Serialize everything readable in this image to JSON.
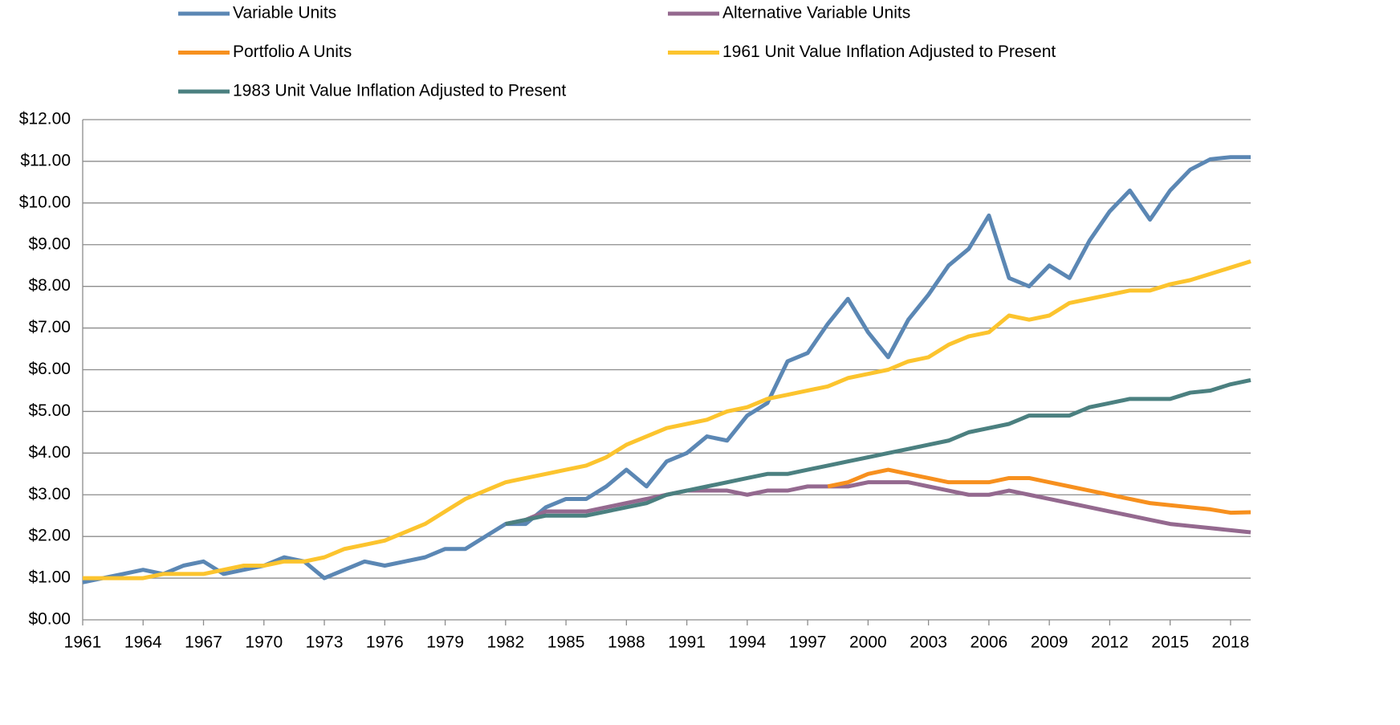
{
  "chart_data": {
    "type": "line",
    "x": [
      1961,
      1962,
      1963,
      1964,
      1965,
      1966,
      1967,
      1968,
      1969,
      1970,
      1971,
      1972,
      1973,
      1974,
      1975,
      1976,
      1977,
      1978,
      1979,
      1980,
      1981,
      1982,
      1983,
      1984,
      1985,
      1986,
      1987,
      1988,
      1989,
      1990,
      1991,
      1992,
      1993,
      1994,
      1995,
      1996,
      1997,
      1998,
      1999,
      2000,
      2001,
      2002,
      2003,
      2004,
      2005,
      2006,
      2007,
      2008,
      2009,
      2010,
      2011,
      2012,
      2013,
      2014,
      2015,
      2016,
      2017,
      2018,
      2019
    ],
    "xlim": [
      1961,
      2019
    ],
    "xticks": [
      1961,
      1964,
      1967,
      1970,
      1973,
      1976,
      1979,
      1982,
      1985,
      1988,
      1991,
      1994,
      1997,
      2000,
      2003,
      2006,
      2009,
      2012,
      2015,
      2018
    ],
    "ylim": [
      0,
      12
    ],
    "yticks": [
      {
        "value": 0,
        "label": "$0.00"
      },
      {
        "value": 1,
        "label": "$1.00"
      },
      {
        "value": 2,
        "label": "$2.00"
      },
      {
        "value": 3,
        "label": "$3.00"
      },
      {
        "value": 4,
        "label": "$4.00"
      },
      {
        "value": 5,
        "label": "$5.00"
      },
      {
        "value": 6,
        "label": "$6.00"
      },
      {
        "value": 7,
        "label": "$7.00"
      },
      {
        "value": 8,
        "label": "$8.00"
      },
      {
        "value": 9,
        "label": "$9.00"
      },
      {
        "value": 10,
        "label": "$10.00"
      },
      {
        "value": 11,
        "label": "$11.00"
      },
      {
        "value": 12,
        "label": "$12.00"
      }
    ],
    "grid": true,
    "legend": "top",
    "series": [
      {
        "name": "Variable Units",
        "color": "#5b87b4",
        "values": [
          0.9,
          1.0,
          1.1,
          1.2,
          1.1,
          1.3,
          1.4,
          1.1,
          1.2,
          1.3,
          1.5,
          1.4,
          1.0,
          1.2,
          1.4,
          1.3,
          1.4,
          1.5,
          1.7,
          1.7,
          2.0,
          2.3,
          2.3,
          2.7,
          2.9,
          2.9,
          3.2,
          3.6,
          3.2,
          3.8,
          4.0,
          4.4,
          4.3,
          4.9,
          5.2,
          6.2,
          6.4,
          7.1,
          7.7,
          6.9,
          6.3,
          7.2,
          7.8,
          8.5,
          8.9,
          9.7,
          8.2,
          8.0,
          8.5,
          8.2,
          9.1,
          9.8,
          10.3,
          9.6,
          10.3,
          10.8,
          11.05,
          11.1,
          11.1
        ]
      },
      {
        "name": "Alternative Variable Units",
        "color": "#94698f",
        "values": [
          null,
          null,
          null,
          null,
          null,
          null,
          null,
          null,
          null,
          null,
          null,
          null,
          null,
          null,
          null,
          null,
          null,
          null,
          null,
          null,
          null,
          2.3,
          2.4,
          2.6,
          2.6,
          2.6,
          2.7,
          2.8,
          2.9,
          3.0,
          3.1,
          3.1,
          3.1,
          3.0,
          3.1,
          3.1,
          3.2,
          3.2,
          3.2,
          3.3,
          3.3,
          3.3,
          3.2,
          3.1,
          3.0,
          3.0,
          3.1,
          3.0,
          2.9,
          2.8,
          2.7,
          2.6,
          2.5,
          2.4,
          2.3,
          2.25,
          2.2,
          2.15,
          2.1
        ]
      },
      {
        "name": "Portfolio A Units",
        "color": "#f7901e",
        "values": [
          null,
          null,
          null,
          null,
          null,
          null,
          null,
          null,
          null,
          null,
          null,
          null,
          null,
          null,
          null,
          null,
          null,
          null,
          null,
          null,
          null,
          null,
          null,
          null,
          null,
          null,
          null,
          null,
          null,
          null,
          null,
          null,
          null,
          null,
          null,
          null,
          null,
          3.2,
          3.3,
          3.5,
          3.6,
          3.5,
          3.4,
          3.3,
          3.3,
          3.3,
          3.4,
          3.4,
          3.3,
          3.2,
          3.1,
          3.0,
          2.9,
          2.8,
          2.75,
          2.7,
          2.65,
          2.57,
          2.58
        ]
      },
      {
        "name": "1961 Unit Value Inflation Adjusted to Present",
        "color": "#fcc42e",
        "values": [
          1.0,
          1.0,
          1.0,
          1.0,
          1.1,
          1.1,
          1.1,
          1.2,
          1.3,
          1.3,
          1.4,
          1.4,
          1.5,
          1.7,
          1.8,
          1.9,
          2.1,
          2.3,
          2.6,
          2.9,
          3.1,
          3.3,
          3.4,
          3.5,
          3.6,
          3.7,
          3.9,
          4.2,
          4.4,
          4.6,
          4.7,
          4.8,
          5.0,
          5.1,
          5.3,
          5.4,
          5.5,
          5.6,
          5.8,
          5.9,
          6.0,
          6.2,
          6.3,
          6.6,
          6.8,
          6.9,
          7.3,
          7.2,
          7.3,
          7.6,
          7.7,
          7.8,
          7.9,
          7.9,
          8.05,
          8.15,
          8.3,
          8.45,
          8.6
        ]
      },
      {
        "name": "1983 Unit Value Inflation Adjusted to Present",
        "color": "#4b8080",
        "values": [
          null,
          null,
          null,
          null,
          null,
          null,
          null,
          null,
          null,
          null,
          null,
          null,
          null,
          null,
          null,
          null,
          null,
          null,
          null,
          null,
          null,
          2.3,
          2.4,
          2.5,
          2.5,
          2.5,
          2.6,
          2.7,
          2.8,
          3.0,
          3.1,
          3.2,
          3.3,
          3.4,
          3.5,
          3.5,
          3.6,
          3.7,
          3.8,
          3.9,
          4.0,
          4.1,
          4.2,
          4.3,
          4.5,
          4.6,
          4.7,
          4.9,
          4.9,
          4.9,
          5.1,
          5.2,
          5.3,
          5.3,
          5.3,
          5.45,
          5.5,
          5.65,
          5.75
        ]
      }
    ]
  }
}
